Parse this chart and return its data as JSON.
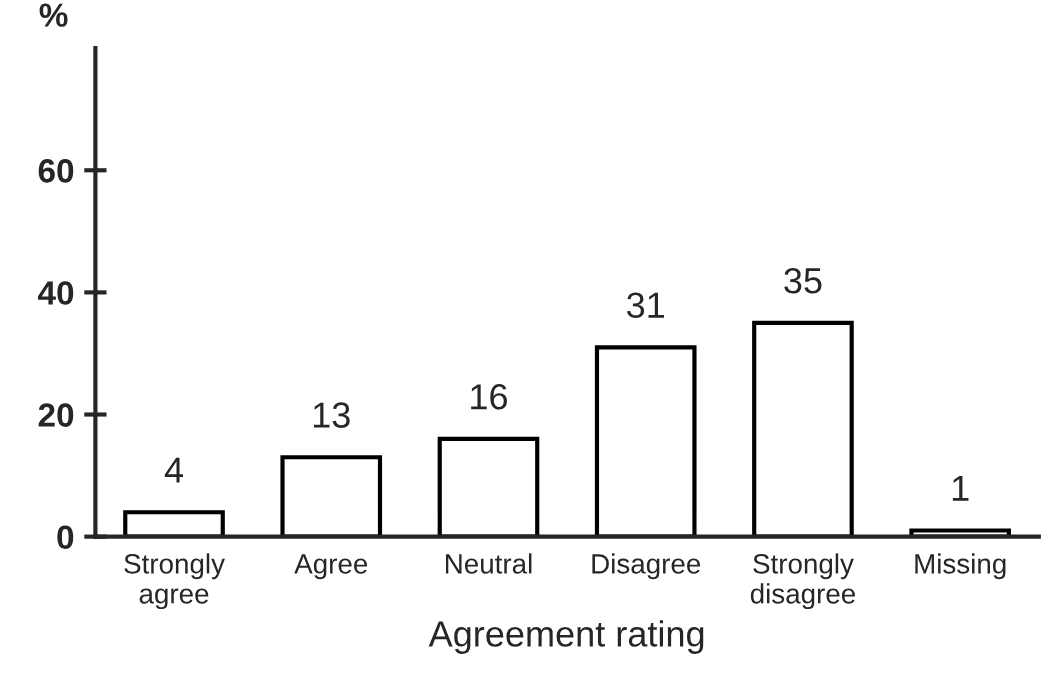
{
  "chart_data": {
    "type": "bar",
    "xlabel": "Agreement rating",
    "ylabel": "%",
    "categories": [
      "Strongly\nagree",
      "Agree",
      "Neutral",
      "Disagree",
      "Strongly\ndisagree",
      "Missing"
    ],
    "values": [
      4,
      13,
      16,
      31,
      35,
      1
    ],
    "color": "#ffffff",
    "ylim": [
      0,
      80
    ],
    "yticks": [
      0,
      20,
      40,
      60
    ],
    "data_labels": true,
    "grid": false
  }
}
